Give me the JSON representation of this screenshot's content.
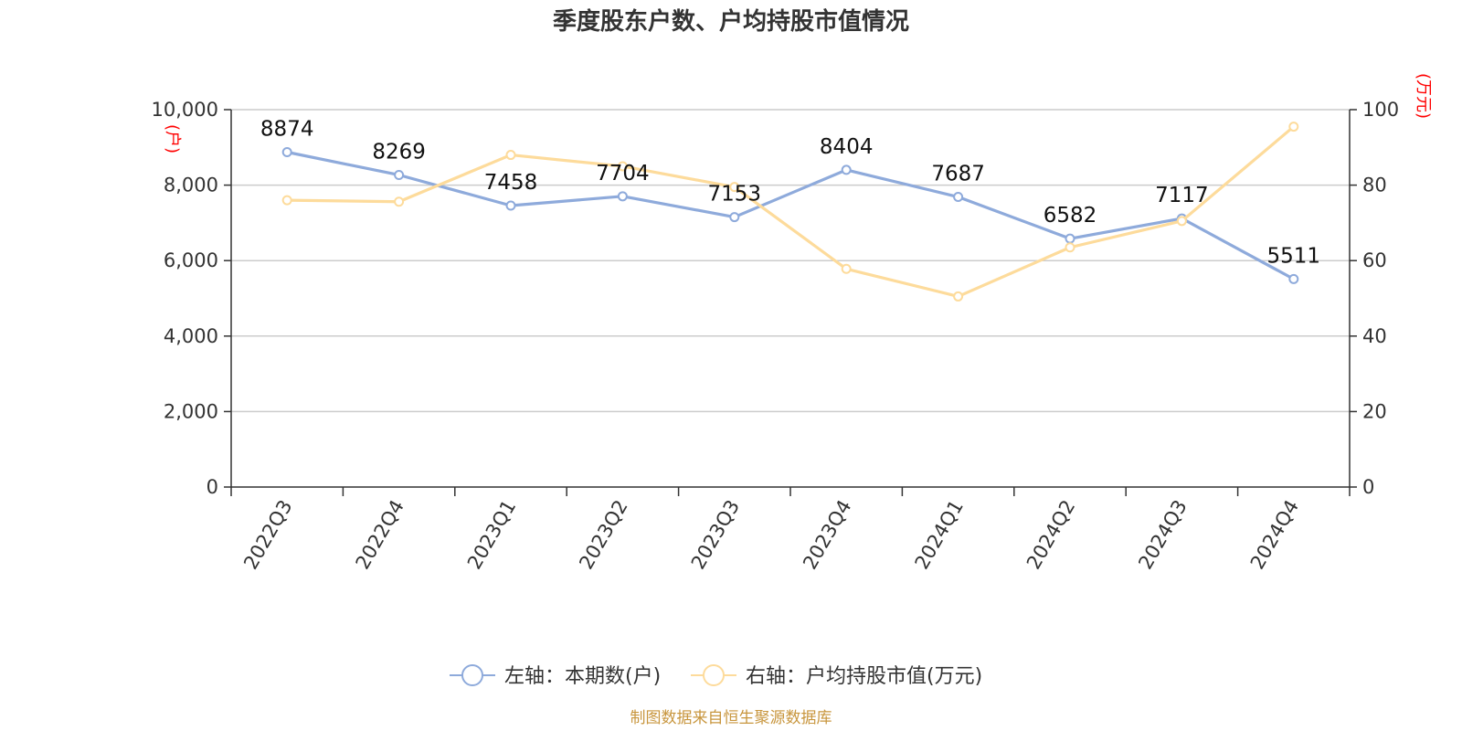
{
  "chart_data": {
    "type": "line",
    "title": "季度股东户数、户均持股市值情况",
    "categories": [
      "2022Q3",
      "2022Q4",
      "2023Q1",
      "2023Q2",
      "2023Q3",
      "2023Q4",
      "2024Q1",
      "2024Q2",
      "2024Q3",
      "2024Q4"
    ],
    "y_left": {
      "unit": "(户)",
      "ylim": [
        0,
        10000
      ],
      "ticks": [
        "0",
        "2,000",
        "4,000",
        "6,000",
        "8,000",
        "10,000"
      ]
    },
    "y_right": {
      "unit": "(万元)",
      "ylim": [
        0,
        100
      ],
      "ticks": [
        "0",
        "20",
        "40",
        "60",
        "80",
        "100"
      ]
    },
    "series": [
      {
        "name": "左轴：本期数(户)",
        "axis": "left",
        "color": "#8eaadb",
        "values": [
          8874,
          8269,
          7458,
          7704,
          7153,
          8404,
          7687,
          6582,
          7117,
          5511
        ],
        "labels": [
          "8874",
          "8269",
          "7458",
          "7704",
          "7153",
          "8404",
          "7687",
          "6582",
          "7117",
          "5511"
        ]
      },
      {
        "name": "右轴：户均持股市值(万元)",
        "axis": "right",
        "color": "#fddb9b",
        "values": [
          76.0,
          75.6,
          88.0,
          85.0,
          79.5,
          57.8,
          50.5,
          63.5,
          70.5,
          95.5
        ]
      }
    ],
    "grid": true,
    "legend_position": "bottom-center"
  },
  "source": "制图数据来自恒生聚源数据库"
}
